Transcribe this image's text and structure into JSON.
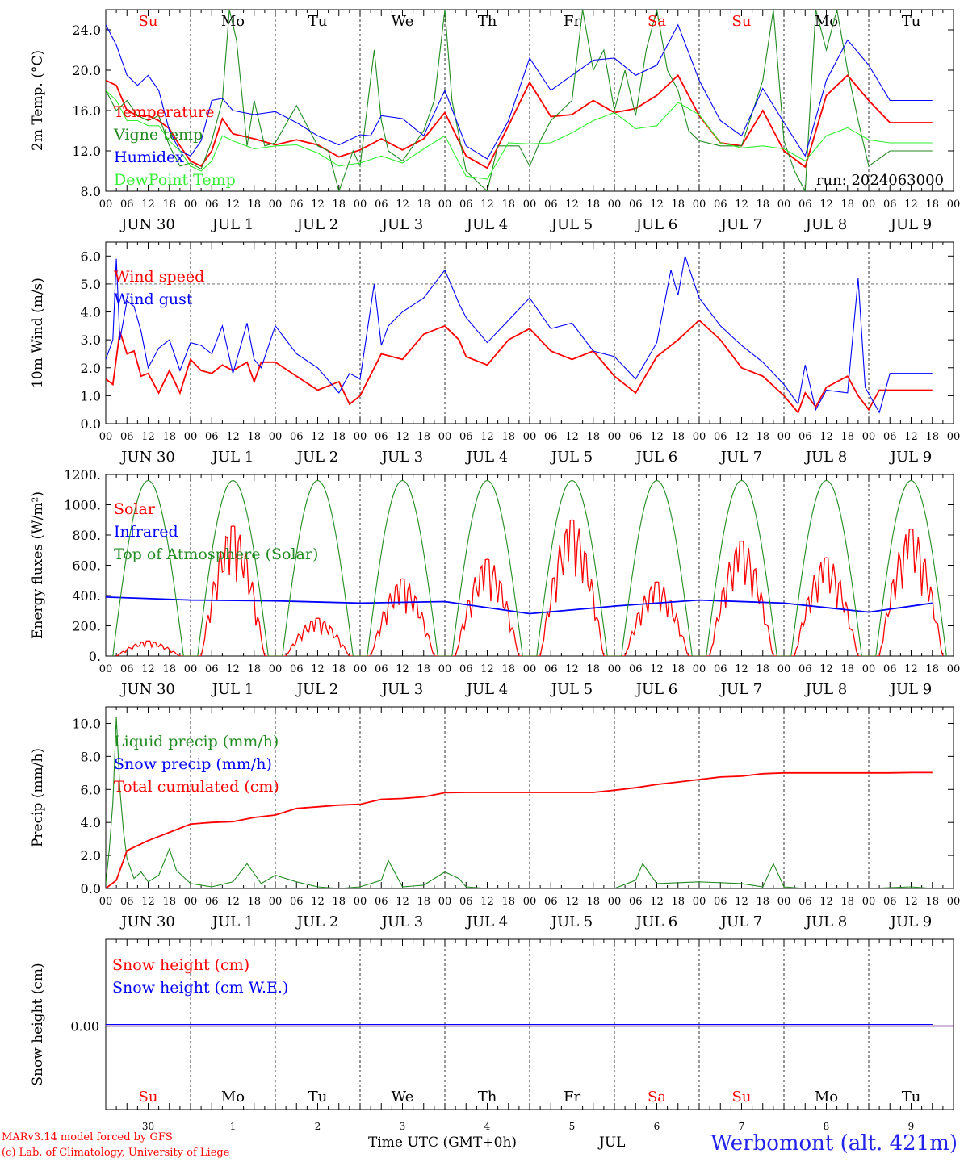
{
  "run_label": "run: 2024063000",
  "footer": {
    "model_line": "MARv3.14 model forced by GFS",
    "credit_line": "(c) Lab. of Climatology, University of Liege",
    "time_axis": "Time UTC (GMT+0h)",
    "month": "JUL",
    "station": "Werbomont (alt. 421m)"
  },
  "days": [
    {
      "weekday": "Su",
      "date": "JUN 30",
      "num": "30",
      "weekend": true
    },
    {
      "weekday": "Mo",
      "date": "JUL  1",
      "num": "1",
      "weekend": false
    },
    {
      "weekday": "Tu",
      "date": "JUL  2",
      "num": "2",
      "weekend": false
    },
    {
      "weekday": "We",
      "date": "JUL  3",
      "num": "3",
      "weekend": false
    },
    {
      "weekday": "Th",
      "date": "JUL  4",
      "num": "4",
      "weekend": false
    },
    {
      "weekday": "Fr",
      "date": "JUL  5",
      "num": "5",
      "weekend": false
    },
    {
      "weekday": "Sa",
      "date": "JUL  6",
      "num": "6",
      "weekend": true
    },
    {
      "weekday": "Su",
      "date": "JUL  7",
      "num": "7",
      "weekend": true
    },
    {
      "weekday": "Mo",
      "date": "JUL  8",
      "num": "8",
      "weekend": false
    },
    {
      "weekday": "Tu",
      "date": "JUL  9",
      "num": "9",
      "weekend": false
    }
  ],
  "hour_labels": [
    "00",
    "06",
    "12",
    "18"
  ],
  "colors": {
    "red": "#ff0000",
    "blue": "#0000ff",
    "green": "#228b22",
    "lightgreen": "#33ee33",
    "purple": "#8040a0",
    "weekend": "#ff0000"
  },
  "chart_data": [
    {
      "type": "line",
      "ylabel": "2m Temp. (°C)",
      "ylim": [
        8,
        26
      ],
      "yticks": [
        "8.0",
        "12.0",
        "16.0",
        "20.0",
        "24.0"
      ],
      "x_unit": "hours since 2024-06-30 00 UTC",
      "series": [
        {
          "name": "Temperature",
          "color": "red",
          "x": [
            0,
            3,
            6,
            9,
            12,
            15,
            18,
            21,
            24,
            27,
            30,
            33,
            36,
            42,
            48,
            54,
            60,
            66,
            72,
            78,
            84,
            90,
            96,
            102,
            108,
            114,
            120,
            126,
            132,
            138,
            144,
            150,
            156,
            162,
            168,
            174,
            180,
            186,
            192,
            198,
            204,
            210,
            216,
            222,
            228,
            234
          ],
          "y": [
            19,
            18.5,
            16,
            15.5,
            15.5,
            15,
            14.2,
            12.5,
            11,
            10.5,
            12,
            15.2,
            13.7,
            13.2,
            12.6,
            13.1,
            12.6,
            11.4,
            12.1,
            13.2,
            12.1,
            13.2,
            15.8,
            11.5,
            10.3,
            14.5,
            18.8,
            15.4,
            15.6,
            17.0,
            15.8,
            16.2,
            17.5,
            19.5,
            15.5,
            12.8,
            12.5,
            16.0,
            12.0,
            10.4,
            17.5,
            19.5,
            17.0,
            14.8,
            14.8,
            14.8
          ]
        },
        {
          "name": "Vigne temp",
          "color": "green",
          "x": [
            0,
            3,
            6,
            9,
            12,
            15,
            18,
            21,
            24,
            27,
            30,
            33,
            35,
            37,
            40,
            42,
            45,
            48,
            54,
            60,
            63,
            66,
            70,
            72,
            76,
            78,
            80,
            84,
            90,
            93,
            96,
            98,
            102,
            108,
            111,
            114,
            117,
            120,
            123,
            126,
            132,
            135,
            138,
            141,
            144,
            147,
            150,
            153,
            156,
            159,
            162,
            165,
            168,
            174,
            180,
            186,
            189,
            192,
            195,
            198,
            201,
            204,
            207,
            210,
            213,
            216,
            222,
            228,
            234
          ],
          "y": [
            18,
            16,
            17,
            15.5,
            15,
            15.5,
            12.5,
            10.5,
            10.8,
            10.2,
            13,
            17,
            26,
            23,
            12.5,
            17,
            12.5,
            12.8,
            16.5,
            12.5,
            12,
            8,
            12,
            10.5,
            22,
            15,
            12,
            11,
            14,
            17,
            26,
            17,
            10,
            8,
            12.5,
            12.5,
            12.5,
            10.5,
            13,
            15,
            17,
            26,
            20,
            22,
            16,
            20,
            15.5,
            22,
            26,
            20,
            18,
            14,
            13,
            12.5,
            12.5,
            19,
            26,
            13,
            10,
            8,
            26,
            22,
            26,
            20,
            15,
            10.5,
            12,
            12,
            12
          ]
        },
        {
          "name": "Humidex",
          "color": "blue",
          "x": [
            0,
            3,
            6,
            9,
            12,
            15,
            18,
            21,
            24,
            27,
            30,
            33,
            36,
            42,
            48,
            54,
            60,
            66,
            72,
            75,
            78,
            84,
            90,
            96,
            102,
            108,
            114,
            120,
            126,
            132,
            138,
            144,
            150,
            156,
            162,
            168,
            174,
            180,
            186,
            192,
            198,
            204,
            210,
            216,
            222,
            228,
            234
          ],
          "y": [
            24.5,
            22.5,
            19.5,
            18.5,
            19.5,
            18,
            14,
            12,
            11.5,
            13,
            17,
            17.2,
            16.0,
            15.6,
            15.9,
            14.8,
            13.5,
            12.6,
            13.6,
            13.5,
            15.5,
            15.2,
            13.5,
            18.0,
            12.5,
            11.2,
            15.0,
            21.2,
            18.0,
            19.5,
            21.0,
            21.2,
            19.5,
            20.5,
            24.5,
            19.0,
            15.0,
            13.5,
            18.2,
            14.8,
            11.5,
            19.0,
            23.0,
            20.5,
            17.0,
            17.0,
            17.0
          ]
        },
        {
          "name": "DewPoint Temp",
          "color": "lightgreen",
          "x": [
            0,
            3,
            6,
            9,
            12,
            15,
            18,
            21,
            24,
            27,
            30,
            33,
            36,
            42,
            48,
            54,
            60,
            66,
            72,
            78,
            84,
            90,
            96,
            102,
            108,
            114,
            120,
            126,
            132,
            138,
            144,
            150,
            156,
            162,
            168,
            174,
            180,
            186,
            192,
            198,
            204,
            210,
            216,
            222,
            228,
            234
          ],
          "y": [
            18,
            17,
            15,
            15,
            14.5,
            14.5,
            13,
            12,
            10.5,
            10,
            11,
            13.5,
            13,
            12.2,
            12.5,
            12.6,
            11.8,
            10.5,
            10.8,
            11.5,
            10.8,
            12.2,
            13.5,
            9.5,
            9.2,
            12.8,
            12.7,
            12.8,
            13.8,
            15.0,
            15.8,
            14.2,
            14.5,
            16.8,
            15.6,
            12.8,
            12.3,
            12.5,
            12.2,
            11.0,
            13.5,
            14.3,
            13.1,
            12.8,
            12.8,
            12.8
          ]
        }
      ]
    },
    {
      "type": "line",
      "ylabel": "10m Wind (m/s)",
      "ylim": [
        0,
        6.5
      ],
      "yticks": [
        "0.0",
        "1.0",
        "2.0",
        "3.0",
        "4.0",
        "5.0",
        "6.0"
      ],
      "refline": 5.0,
      "series": [
        {
          "name": "Wind speed",
          "color": "red",
          "x": [
            0,
            2,
            4,
            6,
            8,
            10,
            12,
            15,
            18,
            21,
            24,
            27,
            30,
            33,
            36,
            40,
            42,
            44,
            48,
            54,
            60,
            66,
            69,
            72,
            78,
            84,
            90,
            96,
            100,
            102,
            108,
            114,
            120,
            126,
            132,
            138,
            144,
            150,
            156,
            162,
            168,
            174,
            180,
            186,
            192,
            196,
            198,
            201,
            204,
            210,
            213,
            216,
            219,
            222,
            228,
            234
          ],
          "y": [
            1.6,
            1.4,
            3.3,
            2.5,
            2.6,
            1.7,
            1.8,
            1.1,
            1.9,
            1.1,
            2.3,
            1.9,
            1.8,
            2.1,
            1.9,
            2.2,
            1.5,
            2.2,
            2.2,
            1.7,
            1.2,
            1.5,
            0.7,
            1.0,
            2.5,
            2.3,
            3.2,
            3.5,
            3.0,
            2.4,
            2.1,
            3.0,
            3.4,
            2.6,
            2.3,
            2.6,
            1.7,
            1.1,
            2.4,
            3.0,
            3.7,
            3.0,
            2.0,
            1.7,
            1.0,
            0.4,
            1.1,
            0.6,
            1.3,
            1.7,
            1.0,
            0.5,
            1.2,
            1.2,
            1.2,
            1.2
          ]
        },
        {
          "name": "Wind gust",
          "color": "blue",
          "x": [
            0,
            2,
            3,
            4,
            6,
            8,
            10,
            12,
            15,
            18,
            21,
            24,
            27,
            30,
            33,
            36,
            40,
            42,
            44,
            48,
            54,
            60,
            66,
            69,
            72,
            76,
            78,
            80,
            84,
            90,
            96,
            100,
            102,
            108,
            114,
            120,
            126,
            132,
            138,
            144,
            150,
            156,
            160,
            162,
            164,
            168,
            174,
            180,
            186,
            192,
            196,
            198,
            201,
            204,
            210,
            213,
            215,
            219,
            222,
            228,
            234
          ],
          "y": [
            2.3,
            3.0,
            5.9,
            3.0,
            4.4,
            4.2,
            3.3,
            2.0,
            2.7,
            3.0,
            1.9,
            2.9,
            2.8,
            2.5,
            3.5,
            1.8,
            3.6,
            2.3,
            2.0,
            3.5,
            2.5,
            2.0,
            1.1,
            1.8,
            1.6,
            5.0,
            2.8,
            3.5,
            4.0,
            4.5,
            5.5,
            4.3,
            3.8,
            2.9,
            3.7,
            4.5,
            3.4,
            3.6,
            2.6,
            2.4,
            1.6,
            2.9,
            5.5,
            4.6,
            6.0,
            4.5,
            3.5,
            2.8,
            2.2,
            1.4,
            0.7,
            2.1,
            0.5,
            1.2,
            1.1,
            5.2,
            1.3,
            0.4,
            1.8,
            1.8,
            1.8
          ]
        }
      ]
    },
    {
      "type": "line",
      "ylabel": "Energy fluxes (W/m²)",
      "ylim": [
        0,
        1200
      ],
      "yticks": [
        "0.",
        "200.",
        "400.",
        "600.",
        "800.",
        "1000.",
        "1200."
      ],
      "series": [
        {
          "name": "Solar",
          "color": "red",
          "peaks": [
            [
              12,
              100
            ],
            [
              36,
              860
            ],
            [
              60,
              250
            ],
            [
              84,
              510
            ],
            [
              108,
              640
            ],
            [
              132,
              900
            ],
            [
              156,
              490
            ],
            [
              180,
              760
            ],
            [
              204,
              650
            ],
            [
              228,
              840
            ]
          ]
        },
        {
          "name": "Infrared",
          "color": "blue",
          "x": [
            0,
            24,
            48,
            72,
            96,
            120,
            144,
            168,
            192,
            216,
            234
          ],
          "y": [
            390,
            370,
            365,
            350,
            360,
            280,
            330,
            370,
            350,
            290,
            350
          ]
        },
        {
          "name": "Top of Atmosphere (Solar)",
          "color": "green",
          "peak": 1160
        }
      ]
    },
    {
      "type": "line",
      "ylabel": "Precip (mm/h)",
      "ylim": [
        0,
        11
      ],
      "yticks": [
        "0.0",
        "2.0",
        "4.0",
        "6.0",
        "8.0",
        "10.0"
      ],
      "series": [
        {
          "name": "Liquid precip (mm/h)",
          "color": "green",
          "x": [
            0,
            1,
            2,
            3,
            4,
            5,
            6,
            8,
            10,
            12,
            15,
            18,
            20,
            24,
            30,
            36,
            40,
            44,
            48,
            54,
            60,
            66,
            72,
            78,
            80,
            84,
            90,
            96,
            100,
            102,
            108,
            120,
            132,
            144,
            150,
            152,
            156,
            168,
            180,
            186,
            189,
            192,
            198,
            204,
            216,
            228,
            234
          ],
          "y": [
            0.3,
            2.4,
            5.2,
            10.4,
            6.0,
            3.5,
            1.8,
            0.6,
            1.0,
            0.4,
            0.8,
            2.4,
            1.1,
            0.3,
            0.1,
            0.4,
            1.5,
            0.3,
            0.8,
            0.4,
            0.1,
            0.0,
            0.1,
            0.5,
            1.7,
            0.1,
            0.2,
            1.0,
            0.6,
            0.1,
            0.0,
            0.0,
            0.0,
            0.0,
            0.5,
            1.5,
            0.3,
            0.4,
            0.3,
            0.1,
            1.5,
            0.1,
            0.0,
            0.0,
            0.0,
            0.1,
            0.0
          ]
        },
        {
          "name": "Snow precip (mm/h)",
          "color": "blue",
          "x": [
            0,
            234
          ],
          "y": [
            0,
            0
          ]
        },
        {
          "name": "Total cumulated (cm)",
          "color": "red",
          "x": [
            0,
            3,
            6,
            12,
            18,
            24,
            30,
            36,
            42,
            48,
            54,
            60,
            66,
            72,
            78,
            84,
            90,
            96,
            102,
            108,
            114,
            120,
            126,
            132,
            138,
            144,
            150,
            156,
            162,
            168,
            174,
            180,
            186,
            192,
            198,
            204,
            210,
            216,
            222,
            228,
            234
          ],
          "y": [
            0,
            0.5,
            2.3,
            2.9,
            3.4,
            3.9,
            4.0,
            4.05,
            4.3,
            4.45,
            4.85,
            4.95,
            5.05,
            5.1,
            5.4,
            5.45,
            5.55,
            5.8,
            5.82,
            5.82,
            5.82,
            5.82,
            5.82,
            5.82,
            5.82,
            5.95,
            6.1,
            6.3,
            6.45,
            6.6,
            6.75,
            6.8,
            6.95,
            7.0,
            7.0,
            7.0,
            7.0,
            7.0,
            7.0,
            7.02,
            7.02
          ]
        }
      ]
    },
    {
      "type": "line",
      "ylabel": "Snow height (cm)",
      "yticks": [
        "0.00"
      ],
      "series": [
        {
          "name": "Snow height (cm)",
          "color": "red",
          "x": [
            0,
            234
          ],
          "y": [
            0,
            0
          ]
        },
        {
          "name": "Snow height (cm W.E.)",
          "color": "blue",
          "x": [
            0,
            234
          ],
          "y": [
            0,
            0
          ]
        }
      ]
    }
  ]
}
